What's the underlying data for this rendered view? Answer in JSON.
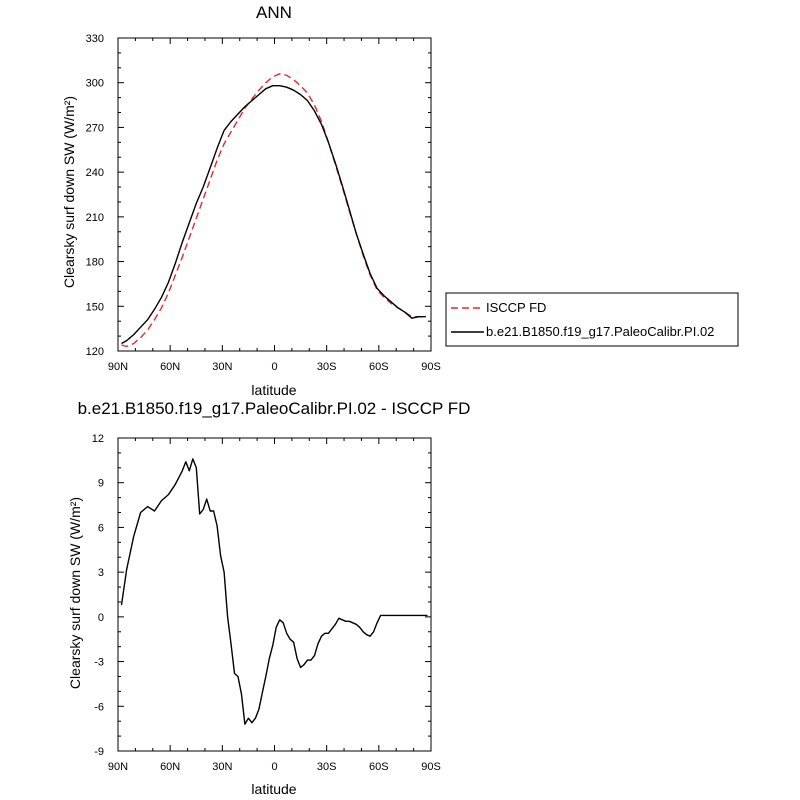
{
  "chart_data": [
    {
      "type": "line",
      "title": "ANN",
      "xlabel": "latitude",
      "ylabel": "Clearsky surf down SW (W/m²)",
      "xlim": [
        90,
        -90
      ],
      "ylim": [
        120,
        330
      ],
      "yticks": [
        120,
        150,
        180,
        210,
        240,
        270,
        300,
        330
      ],
      "xticks": [
        90,
        60,
        30,
        0,
        -30,
        -60,
        -90
      ],
      "xtick_labels": [
        "90N",
        "60N",
        "30N",
        "0",
        "30S",
        "60S",
        "90S"
      ],
      "legend": {
        "placement": "right",
        "entries": [
          "ISCCP FD",
          "b.e21.B1850.f19_g17.PaleoCalibr.PI.02"
        ]
      },
      "series": [
        {
          "name": "ISCCP FD",
          "color": "#e8282b",
          "dash": "dashed",
          "x": [
            88,
            85,
            81,
            77,
            73,
            69,
            65,
            61,
            57,
            53,
            49,
            45,
            41,
            37,
            33,
            29,
            25,
            21,
            17,
            13,
            9,
            5,
            1,
            -3,
            -7,
            -11,
            -15,
            -19,
            -23,
            -27,
            -31,
            -35,
            -39,
            -43,
            -47,
            -51,
            -55,
            -59,
            -63,
            -67,
            -71,
            -75,
            -79,
            -83,
            -87
          ],
          "values": [
            124,
            123,
            125,
            129,
            134,
            141,
            149,
            159,
            171,
            183,
            196,
            209,
            222,
            235,
            248,
            259,
            267,
            275,
            283,
            289,
            295,
            300,
            304,
            306,
            305,
            302,
            298,
            293,
            285,
            274,
            260,
            245,
            230,
            214,
            199,
            184,
            171,
            161,
            156,
            152,
            149,
            146,
            143,
            143,
            143
          ]
        },
        {
          "name": "b.e21.B1850.f19_g17.PaleoCalibr.PI.02",
          "color": "#000000",
          "dash": "solid",
          "x": [
            88,
            85,
            81,
            77,
            73,
            69,
            65,
            61,
            57,
            53,
            49,
            45,
            41,
            37,
            33,
            29,
            25,
            21,
            17,
            13,
            9,
            5,
            1,
            -3,
            -7,
            -11,
            -15,
            -19,
            -23,
            -27,
            -31,
            -35,
            -39,
            -43,
            -47,
            -51,
            -55,
            -59,
            -63,
            -67,
            -71,
            -75,
            -79,
            -83,
            -87
          ],
          "values": [
            125,
            127,
            131,
            136,
            141,
            148,
            156,
            166,
            179,
            193,
            206,
            219,
            230,
            243,
            256,
            268,
            274,
            279,
            284,
            288,
            292,
            296,
            298,
            298,
            297,
            295,
            292,
            288,
            281,
            272,
            260,
            246,
            231,
            215,
            199,
            185,
            172,
            162,
            157,
            153,
            149,
            146,
            142,
            143,
            143
          ]
        }
      ]
    },
    {
      "type": "line",
      "title": "b.e21.B1850.f19_g17.PaleoCalibr.PI.02 - ISCCP FD",
      "xlabel": "latitude",
      "ylabel": "Clearsky surf down SW (W/m²)",
      "xlim": [
        90,
        -90
      ],
      "ylim": [
        -9,
        12
      ],
      "yticks": [
        -9,
        -6,
        -3,
        0,
        3,
        6,
        9,
        12
      ],
      "xticks": [
        90,
        60,
        30,
        0,
        -30,
        -60,
        -90
      ],
      "xtick_labels": [
        "90N",
        "60N",
        "30N",
        "0",
        "30S",
        "60S",
        "90S"
      ],
      "series": [
        {
          "color": "#000000",
          "dash": "solid",
          "x": [
            88,
            85,
            81,
            77,
            73,
            69,
            65,
            61,
            57,
            53,
            51,
            49,
            47,
            45,
            43,
            41,
            39,
            37,
            35,
            33,
            31,
            29,
            27,
            25,
            23,
            21,
            19,
            17,
            15,
            13,
            11,
            9,
            7,
            5,
            3,
            1,
            -1,
            -3,
            -5,
            -7,
            -9,
            -11,
            -13,
            -15,
            -17,
            -19,
            -21,
            -23,
            -25,
            -27,
            -29,
            -31,
            -33,
            -35,
            -37,
            -39,
            -41,
            -43,
            -45,
            -47,
            -49,
            -51,
            -53,
            -55,
            -57,
            -59,
            -61,
            -65,
            -69,
            -73,
            -77,
            -81,
            -85,
            -88
          ],
          "values": [
            0.8,
            3.2,
            5.4,
            7.0,
            7.4,
            7.1,
            7.8,
            8.2,
            8.9,
            9.8,
            10.4,
            9.8,
            10.6,
            10.0,
            6.9,
            7.2,
            7.9,
            7.1,
            7.1,
            6.1,
            4.1,
            3.0,
            0.0,
            -1.8,
            -3.8,
            -4.0,
            -5.2,
            -7.2,
            -6.8,
            -7.1,
            -6.8,
            -6.2,
            -5.1,
            -4.0,
            -2.8,
            -1.9,
            -0.7,
            -0.2,
            -0.4,
            -1.1,
            -1.5,
            -1.7,
            -2.8,
            -3.4,
            -3.2,
            -2.9,
            -2.9,
            -2.6,
            -1.8,
            -1.3,
            -1.1,
            -1.1,
            -0.8,
            -0.5,
            -0.1,
            -0.2,
            -0.3,
            -0.3,
            -0.4,
            -0.5,
            -0.7,
            -1.0,
            -1.2,
            -1.3,
            -1.0,
            -0.4,
            0.1,
            0.1,
            0.1,
            0.1,
            0.1,
            0.1,
            0.1,
            0.1
          ]
        }
      ]
    }
  ]
}
